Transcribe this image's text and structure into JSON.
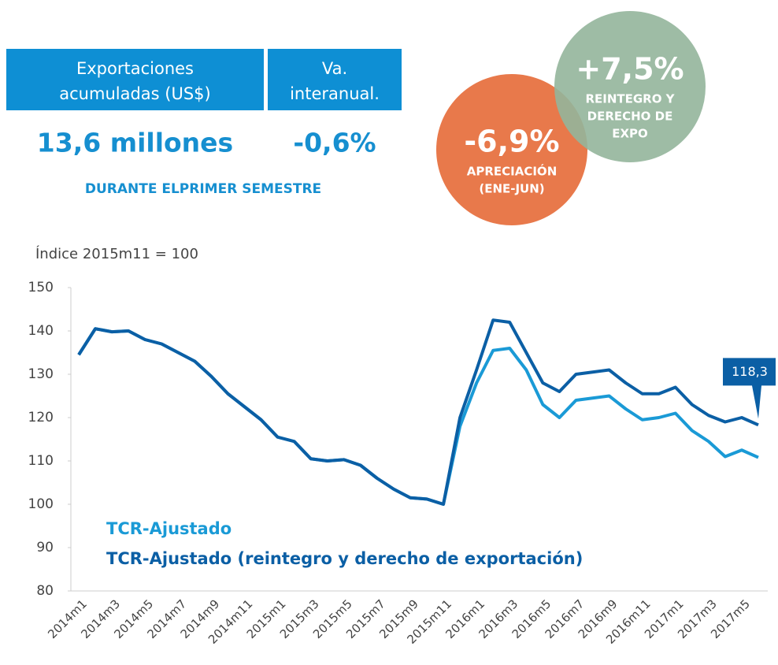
{
  "header": {
    "columns": [
      [
        "Exportaciones",
        "acumuladas (US$)"
      ],
      [
        "Va.",
        "interanual."
      ]
    ],
    "values": [
      "13,6 millones",
      "-0,6%"
    ],
    "note": "DURANTE ELPRIMER SEMESTRE"
  },
  "badges": [
    {
      "value": "-6,9%",
      "lines": [
        "APRECIACIÓN",
        "(ENE-JUN)"
      ],
      "color": "#e8794b"
    },
    {
      "value": "+7,5%",
      "lines": [
        "REINTEGRO Y",
        "DERECHO DE",
        "EXPO"
      ],
      "color": "#94b59b"
    }
  ],
  "chart_data": {
    "type": "line",
    "subtitle": "Índice 2015m11 = 100",
    "categories": [
      "2014m1",
      null,
      "2014m3",
      null,
      "2014m5",
      null,
      "2014m7",
      null,
      "2014m9",
      null,
      "2014m11",
      null,
      "2015m1",
      null,
      "2015m3",
      null,
      "2015m5",
      null,
      "2015m7",
      null,
      "2015m9",
      null,
      "2015m11",
      null,
      "2016m1",
      null,
      "2016m3",
      null,
      "2016m5",
      null,
      "2016m7",
      null,
      "2016m9",
      null,
      "2016m11",
      null,
      "2017m1",
      null,
      "2017m3",
      null,
      "2017m5",
      null
    ],
    "series": [
      {
        "name": "TCR-Ajustado",
        "color": "#1a9ad6",
        "values": [
          134.5,
          140.5,
          139.8,
          140,
          138,
          137,
          135,
          133,
          129.5,
          125.5,
          122.5,
          119.5,
          115.5,
          114.5,
          110.5,
          110,
          110.3,
          109,
          106,
          103.5,
          101.5,
          101.2,
          100,
          118,
          128,
          135.5,
          136,
          131,
          123,
          120,
          124,
          124.5,
          125,
          122,
          119.5,
          120,
          121,
          117,
          114.5,
          111,
          112.5,
          110.8
        ]
      },
      {
        "name": "TCR-Ajustado (reintegro y derecho de exportación)",
        "color": "#0b5fa5",
        "values": [
          134.5,
          140.5,
          139.8,
          140,
          138,
          137,
          135,
          133,
          129.5,
          125.5,
          122.5,
          119.5,
          115.5,
          114.5,
          110.5,
          110,
          110.3,
          109,
          106,
          103.5,
          101.5,
          101.2,
          100,
          120,
          131,
          142.5,
          142,
          135,
          128,
          126,
          130,
          130.5,
          131,
          128,
          125.5,
          125.5,
          127,
          123,
          120.5,
          119,
          120,
          118.3
        ],
        "value_labels": {
          "41": "118,3"
        }
      }
    ],
    "ylim": [
      80,
      150
    ],
    "yticks": [
      80,
      90,
      100,
      110,
      120,
      130,
      140,
      150
    ]
  }
}
